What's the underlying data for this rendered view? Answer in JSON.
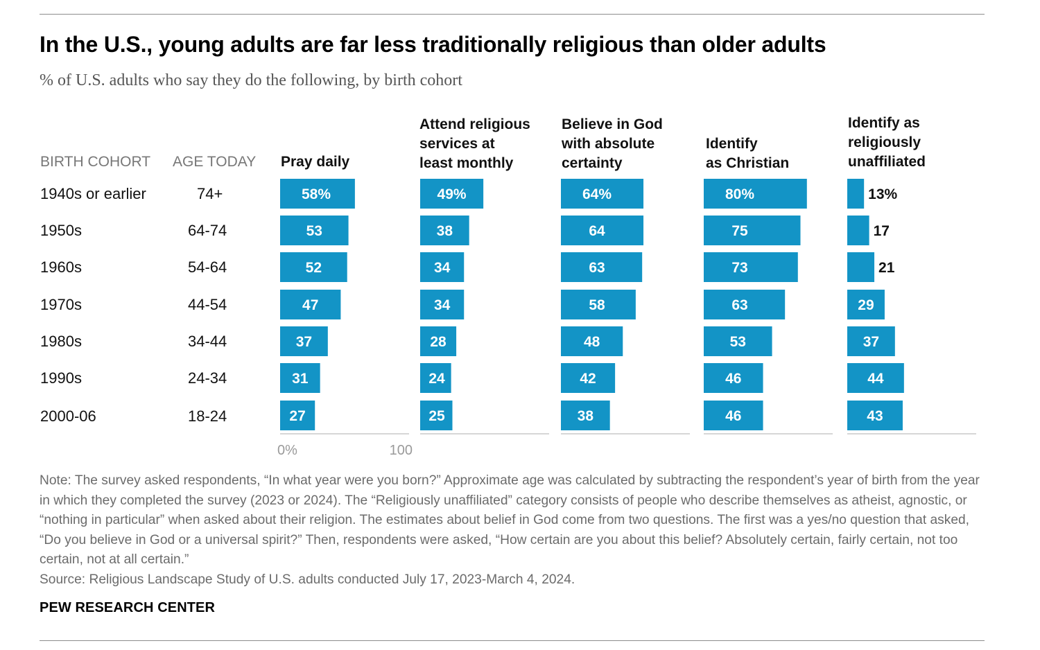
{
  "title": "In the U.S., young adults are far less traditionally religious than older adults",
  "subtitle": "% of U.S. adults who say they do the following, by birth cohort",
  "headers": {
    "cohort": "BIRTH COHORT",
    "age": "AGE TODAY"
  },
  "rows": [
    {
      "cohort": "1940s or earlier",
      "age": "74+"
    },
    {
      "cohort": "1950s",
      "age": "64-74"
    },
    {
      "cohort": "1960s",
      "age": "54-64"
    },
    {
      "cohort": "1970s",
      "age": "44-54"
    },
    {
      "cohort": "1980s",
      "age": "34-44"
    },
    {
      "cohort": "1990s",
      "age": "24-34"
    },
    {
      "cohort": "2000-06",
      "age": "18-24"
    }
  ],
  "chart_data": {
    "type": "bar",
    "orientation": "horizontal",
    "title": "In the U.S., young adults are far less traditionally religious than older adults",
    "subtitle": "% of U.S. adults who say they do the following, by birth cohort",
    "categories": [
      "1940s or earlier",
      "1950s",
      "1960s",
      "1970s",
      "1980s",
      "1990s",
      "2000-06"
    ],
    "xlim": [
      0,
      100
    ],
    "tick_labels": [
      "0%",
      "100"
    ],
    "bar_color": "#1394c6",
    "series": [
      {
        "name": "Pray daily",
        "header_lines": [
          "Pray daily"
        ],
        "values": [
          58,
          53,
          52,
          47,
          37,
          31,
          27
        ],
        "labels": [
          "58%",
          "53",
          "52",
          "47",
          "37",
          "31",
          "27"
        ]
      },
      {
        "name": "Attend religious services at least monthly",
        "header_lines": [
          "Attend religious",
          "services at",
          "least monthly"
        ],
        "values": [
          49,
          38,
          34,
          34,
          28,
          24,
          25
        ],
        "labels": [
          "49%",
          "38",
          "34",
          "34",
          "28",
          "24",
          "25"
        ]
      },
      {
        "name": "Believe in God with absolute certainty",
        "header_lines": [
          "Believe in God",
          "with absolute",
          "certainty"
        ],
        "values": [
          64,
          64,
          63,
          58,
          48,
          42,
          38
        ],
        "labels": [
          "64%",
          "64",
          "63",
          "58",
          "48",
          "42",
          "38"
        ]
      },
      {
        "name": "Identify as Christian",
        "header_lines": [
          "Identify",
          "as Christian"
        ],
        "values": [
          80,
          75,
          73,
          63,
          53,
          46,
          46
        ],
        "labels": [
          "80%",
          "75",
          "73",
          "63",
          "53",
          "46",
          "46"
        ]
      },
      {
        "name": "Identify as religiously unaffiliated",
        "header_lines": [
          "Identify as",
          "religiously",
          "unaffiliated"
        ],
        "values": [
          13,
          17,
          21,
          29,
          37,
          44,
          43
        ],
        "labels": [
          "13%",
          "17",
          "21",
          "29",
          "37",
          "44",
          "43"
        ]
      }
    ]
  },
  "note": [
    "Note: The survey asked respondents, “In what year were you born?” Approximate age was calculated by subtracting the respondent’s year of birth from the year in which they completed the survey (2023 or 2024). The “Religiously unaffiliated” category consists of people who describe themselves as atheist, agnostic, or “nothing in particular” when asked about their religion. The estimates about belief in God come from two questions. The first was a yes/no question that asked, “Do you believe in God or a universal spirit?” Then, respondents were asked, “How certain are you about this belief? Absolutely certain, fairly certain, not too certain, not at all certain.”",
    "Source: Religious Landscape Study of U.S. adults conducted July 17, 2023-March 4, 2024."
  ],
  "brand": "PEW RESEARCH CENTER"
}
